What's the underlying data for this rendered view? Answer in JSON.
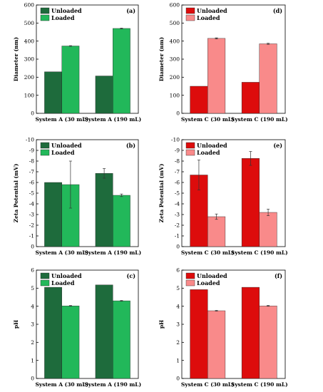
{
  "chart_data": [
    {
      "panel": "(a)",
      "type": "bar",
      "categories": [
        "System A (30 mL)",
        "System A (190 mL)"
      ],
      "ylabel": "Diameter (nm)",
      "ylim": [
        0,
        600
      ],
      "yticks": [
        "0",
        "100",
        "200",
        "300",
        "400",
        "500",
        "600"
      ],
      "legend": "top-left",
      "series": [
        {
          "name": "Unloaded",
          "color": "#1e6b3c",
          "values": [
            230,
            207
          ],
          "errors": [
            0,
            0
          ]
        },
        {
          "name": "Loaded",
          "color": "#22b85a",
          "values": [
            373,
            470
          ],
          "errors": [
            2,
            2
          ]
        }
      ]
    },
    {
      "panel": "(d)",
      "type": "bar",
      "categories": [
        "System C (30 mL)",
        "System C (190 mL)"
      ],
      "ylabel": "Diameter (nm)",
      "ylim": [
        0,
        600
      ],
      "yticks": [
        "0",
        "100",
        "200",
        "300",
        "400",
        "500",
        "600"
      ],
      "legend": "top-left",
      "series": [
        {
          "name": "Unloaded",
          "color": "#dd0c0c",
          "values": [
            150,
            172
          ],
          "errors": [
            0,
            0
          ]
        },
        {
          "name": "Loaded",
          "color": "#f98a8a",
          "values": [
            415,
            385
          ],
          "errors": [
            3,
            3
          ]
        }
      ]
    },
    {
      "panel": "(b)",
      "type": "bar",
      "categories": [
        "System A (30 mL)",
        "System A (190 mL)"
      ],
      "ylabel": "Zeta Potential (mV)",
      "ylim": [
        0,
        10
      ],
      "yticks": [
        "0",
        "-1",
        "-2",
        "-3",
        "-4",
        "-5",
        "-6",
        "-7",
        "-8",
        "-9",
        "-10"
      ],
      "legend": "top-left",
      "series": [
        {
          "name": "Unloaded",
          "color": "#1e6b3c",
          "values": [
            6.0,
            6.85
          ],
          "errors": [
            0,
            0.45
          ]
        },
        {
          "name": "Loaded",
          "color": "#22b85a",
          "values": [
            5.8,
            4.8
          ],
          "errors": [
            2.2,
            0.12
          ]
        }
      ]
    },
    {
      "panel": "(e)",
      "type": "bar",
      "categories": [
        "System C (30 mL)",
        "System C (190 mL)"
      ],
      "ylabel": "Zeta Potential (mV)",
      "ylim": [
        0,
        10
      ],
      "yticks": [
        "0",
        "-1",
        "-2",
        "-3",
        "-4",
        "-5",
        "-6",
        "-7",
        "-8",
        "-9",
        "-10"
      ],
      "legend": "top-left",
      "series": [
        {
          "name": "Unloaded",
          "color": "#dd0c0c",
          "values": [
            6.7,
            8.25
          ],
          "errors": [
            1.4,
            0.65
          ]
        },
        {
          "name": "Loaded",
          "color": "#f98a8a",
          "values": [
            2.8,
            3.2
          ],
          "errors": [
            0.25,
            0.3
          ]
        }
      ]
    },
    {
      "panel": "(c)",
      "type": "bar",
      "categories": [
        "System A (30 mL)",
        "System A (190 mL)"
      ],
      "ylabel": "pH",
      "ylim": [
        0,
        6
      ],
      "yticks": [
        "0",
        "1",
        "2",
        "3",
        "4",
        "5",
        "6"
      ],
      "legend": "top-left",
      "series": [
        {
          "name": "Unloaded",
          "color": "#1e6b3c",
          "values": [
            5.05,
            5.18
          ],
          "errors": [
            0,
            0
          ]
        },
        {
          "name": "Loaded",
          "color": "#22b85a",
          "values": [
            4.02,
            4.3
          ],
          "errors": [
            0.02,
            0.02
          ]
        }
      ]
    },
    {
      "panel": "(f)",
      "type": "bar",
      "categories": [
        "System C (30 mL)",
        "System C (190 mL)"
      ],
      "ylabel": "pH",
      "ylim": [
        0,
        6
      ],
      "yticks": [
        "0",
        "1",
        "2",
        "3",
        "4",
        "5",
        "6"
      ],
      "legend": "top-left",
      "series": [
        {
          "name": "Unloaded",
          "color": "#dd0c0c",
          "values": [
            4.92,
            5.05
          ],
          "errors": [
            0,
            0
          ]
        },
        {
          "name": "Loaded",
          "color": "#f98a8a",
          "values": [
            3.75,
            4.02
          ],
          "errors": [
            0.02,
            0.02
          ]
        }
      ]
    }
  ]
}
